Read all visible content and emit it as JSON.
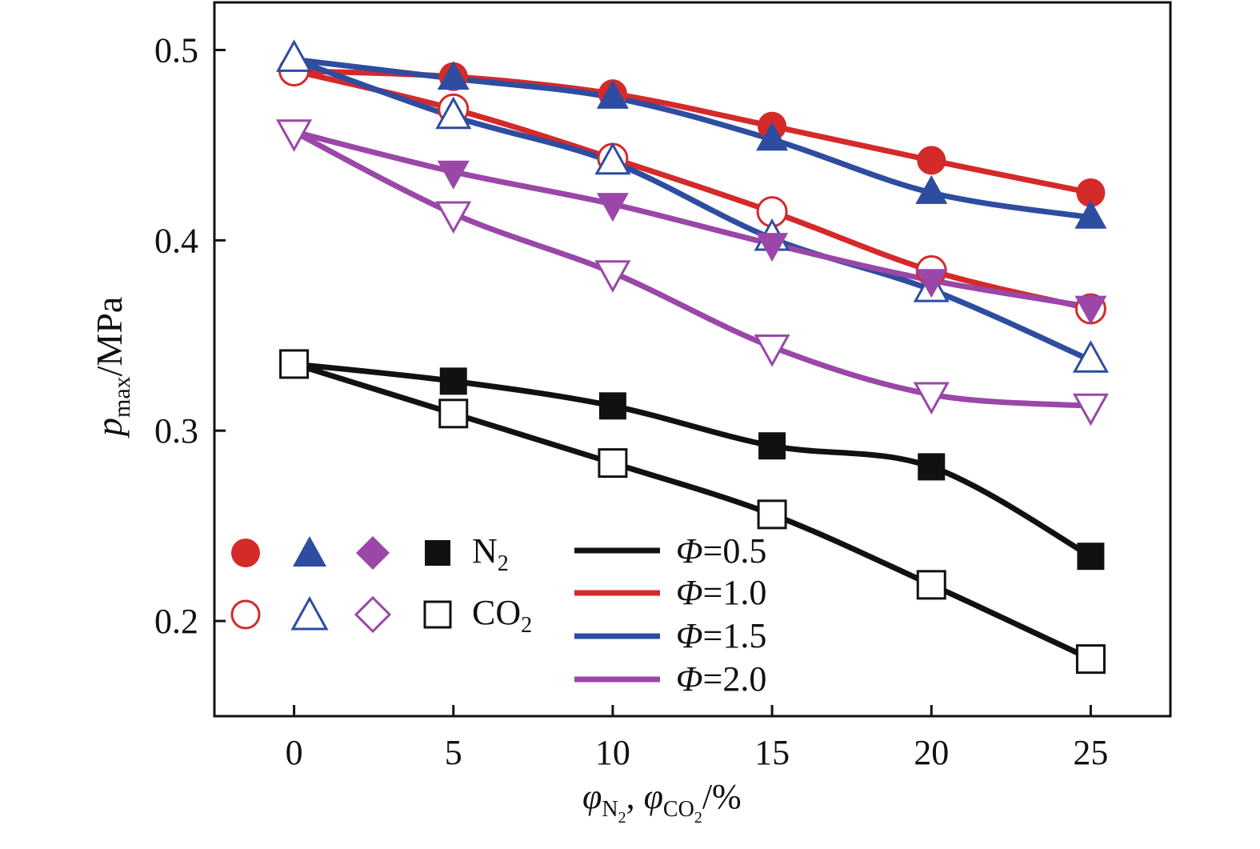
{
  "chart_data": {
    "type": "line",
    "x": [
      0,
      5,
      10,
      15,
      20,
      25
    ],
    "xlim": [
      -2.5,
      27.5
    ],
    "ylim": [
      0.15,
      0.525
    ],
    "xticks": [
      "0",
      "5",
      "10",
      "15",
      "20",
      "25"
    ],
    "yticks": [
      "0.2",
      "0.3",
      "0.4",
      "0.5"
    ],
    "ylabel": {
      "main": "p",
      "sub": "max",
      "unit": "/MPa"
    },
    "xlabel": {
      "sym1": "φ",
      "sub1": "N",
      "sub1b": "2",
      "sep": ", ",
      "sym2": "φ",
      "sub2": "CO",
      "sub2b": "2",
      "unit": "/%"
    },
    "marker_legend": [
      {
        "label": "N",
        "sub": "2",
        "fill": "solid"
      },
      {
        "label": "CO",
        "sub": "2",
        "fill": "open"
      }
    ],
    "line_legend": [
      {
        "sym": "Φ",
        "value": "=0.5",
        "color": "#111111"
      },
      {
        "sym": "Φ",
        "value": "=1.0",
        "color": "#d42a2a"
      },
      {
        "sym": "Φ",
        "value": "=1.5",
        "color": "#2e4da0"
      },
      {
        "sym": "Φ",
        "value": "=2.0",
        "color": "#9a47a8"
      }
    ],
    "series": [
      {
        "phi": "0.5",
        "gas": "N2",
        "marker": "square",
        "filled": true,
        "color": "#111111",
        "values": [
          0.335,
          0.326,
          0.313,
          0.292,
          0.281,
          0.234
        ]
      },
      {
        "phi": "0.5",
        "gas": "CO2",
        "marker": "square",
        "filled": false,
        "color": "#111111",
        "values": [
          0.335,
          0.309,
          0.283,
          0.256,
          0.219,
          0.18
        ]
      },
      {
        "phi": "1.0",
        "gas": "N2",
        "marker": "circle",
        "filled": true,
        "color": "#d42a2a",
        "values": [
          0.489,
          0.486,
          0.477,
          0.46,
          0.442,
          0.425
        ]
      },
      {
        "phi": "1.0",
        "gas": "CO2",
        "marker": "circle",
        "filled": false,
        "color": "#d42a2a",
        "values": [
          0.489,
          0.469,
          0.443,
          0.415,
          0.384,
          0.364
        ]
      },
      {
        "phi": "1.5",
        "gas": "N2",
        "marker": "triangle",
        "filled": true,
        "color": "#2e4da0",
        "values": [
          0.495,
          0.485,
          0.475,
          0.453,
          0.425,
          0.412
        ]
      },
      {
        "phi": "1.5",
        "gas": "CO2",
        "marker": "triangle",
        "filled": false,
        "color": "#2e4da0",
        "values": [
          0.495,
          0.465,
          0.441,
          0.401,
          0.374,
          0.337
        ]
      },
      {
        "phi": "2.0",
        "gas": "N2",
        "marker": "tri-down",
        "filled": true,
        "color": "#9a47a8",
        "values": [
          0.457,
          0.436,
          0.419,
          0.398,
          0.379,
          0.365
        ]
      },
      {
        "phi": "2.0",
        "gas": "CO2",
        "marker": "tri-down",
        "filled": false,
        "color": "#9a47a8",
        "values": [
          0.457,
          0.414,
          0.383,
          0.344,
          0.319,
          0.313
        ]
      }
    ]
  }
}
